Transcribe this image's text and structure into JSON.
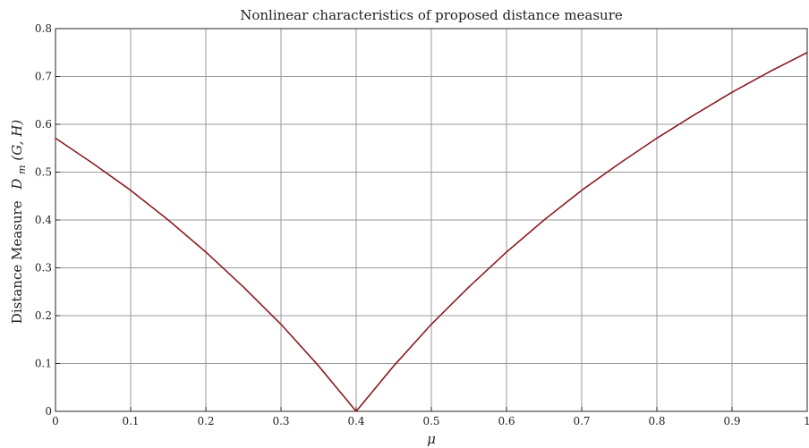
{
  "chart_data": {
    "type": "line",
    "title": "Nonlinear characteristics of  proposed distance measure",
    "xlabel": "μ",
    "ylabel_text": "Distance Measure",
    "ylabel_math": {
      "symbol": "D",
      "subscript": "m",
      "args": "(G, H)"
    },
    "xlim": [
      0,
      1
    ],
    "ylim": [
      0,
      0.8
    ],
    "x_ticks": [
      "0",
      "0.1",
      "0.2",
      "0.3",
      "0.4",
      "0.5",
      "0.6",
      "0.7",
      "0.8",
      "0.9",
      "1"
    ],
    "y_ticks": [
      "0",
      "0.1",
      "0.2",
      "0.3",
      "0.4",
      "0.5",
      "0.6",
      "0.7",
      "0.8"
    ],
    "grid": true,
    "series": [
      {
        "color": "#8b1a22",
        "x": [
          0,
          0.05,
          0.1,
          0.15,
          0.2,
          0.25,
          0.3,
          0.35,
          0.4,
          0.45,
          0.5,
          0.55,
          0.6,
          0.65,
          0.7,
          0.75,
          0.8,
          0.85,
          0.9,
          0.95,
          1
        ],
        "y": [
          0.571,
          0.518,
          0.462,
          0.4,
          0.333,
          0.26,
          0.182,
          0.095,
          0,
          0.095,
          0.182,
          0.26,
          0.333,
          0.4,
          0.462,
          0.518,
          0.571,
          0.62,
          0.667,
          0.71,
          0.75
        ]
      }
    ]
  }
}
